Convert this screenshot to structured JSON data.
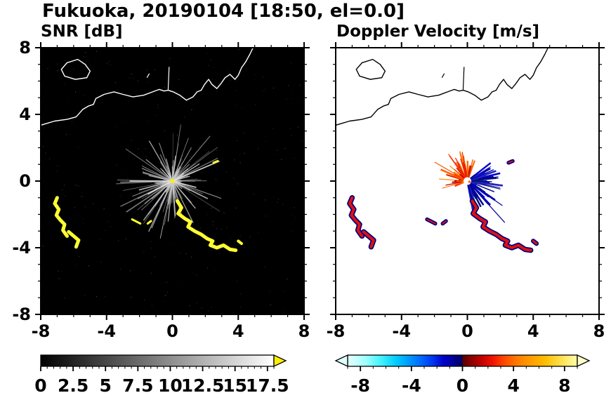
{
  "title": "Fukuoka, 20190104 [18:50, el=0.0]",
  "coastline": {
    "island": [
      [
        -6.4,
        7.1
      ],
      [
        -5.75,
        7.3
      ],
      [
        -5.3,
        7.0
      ],
      [
        -5.0,
        6.6
      ],
      [
        -5.2,
        6.2
      ],
      [
        -5.9,
        6.1
      ],
      [
        -6.55,
        6.3
      ],
      [
        -6.75,
        6.7
      ]
    ],
    "mainland": [
      [
        -8.0,
        3.35
      ],
      [
        -7.15,
        3.6
      ],
      [
        -6.4,
        3.7
      ],
      [
        -5.85,
        3.85
      ],
      [
        -5.45,
        4.3
      ],
      [
        -5.1,
        4.5
      ],
      [
        -4.8,
        4.6
      ],
      [
        -4.65,
        4.95
      ],
      [
        -4.15,
        5.2
      ],
      [
        -3.55,
        5.35
      ],
      [
        -3.0,
        5.2
      ],
      [
        -2.4,
        5.05
      ],
      [
        -1.75,
        5.15
      ],
      [
        -1.2,
        5.35
      ],
      [
        -0.8,
        5.5
      ],
      [
        -0.5,
        5.4
      ],
      [
        -0.25,
        5.45
      ],
      [
        0.05,
        5.35
      ],
      [
        0.45,
        5.15
      ],
      [
        0.85,
        4.85
      ],
      [
        1.25,
        5.05
      ],
      [
        1.5,
        5.35
      ],
      [
        1.75,
        5.45
      ],
      [
        1.95,
        5.8
      ],
      [
        2.2,
        6.1
      ],
      [
        2.4,
        5.8
      ],
      [
        2.7,
        5.55
      ],
      [
        2.95,
        5.85
      ],
      [
        3.2,
        6.2
      ],
      [
        3.5,
        6.4
      ],
      [
        3.8,
        6.1
      ],
      [
        4.0,
        6.35
      ],
      [
        4.2,
        6.8
      ],
      [
        4.45,
        7.15
      ],
      [
        4.7,
        7.6
      ],
      [
        4.9,
        8.0
      ]
    ],
    "breakwater": [
      [
        -0.26,
        5.45
      ],
      [
        -0.2,
        6.85
      ]
    ],
    "islet": [
      [
        -1.55,
        6.2
      ],
      [
        -1.4,
        6.45
      ]
    ]
  },
  "features": [
    {
      "w": 5,
      "pts": [
        [
          -7.0,
          -1.0
        ],
        [
          -7.15,
          -1.35
        ],
        [
          -6.9,
          -1.7
        ],
        [
          -7.05,
          -2.05
        ],
        [
          -6.8,
          -2.35
        ],
        [
          -6.55,
          -2.6
        ],
        [
          -6.65,
          -2.95
        ],
        [
          -6.4,
          -3.3
        ]
      ]
    },
    {
      "w": 5,
      "pts": [
        [
          -6.3,
          -3.05
        ],
        [
          -6.0,
          -3.3
        ],
        [
          -5.7,
          -3.55
        ],
        [
          -5.85,
          -3.95
        ]
      ]
    },
    {
      "w": 3,
      "pts": [
        [
          -2.45,
          -2.3
        ],
        [
          -1.95,
          -2.55
        ]
      ]
    },
    {
      "w": 3,
      "pts": [
        [
          -1.5,
          -2.55
        ],
        [
          -1.3,
          -2.4
        ]
      ]
    },
    {
      "w": 5,
      "pts": [
        [
          0.3,
          -1.2
        ],
        [
          0.55,
          -1.6
        ],
        [
          0.35,
          -1.95
        ],
        [
          0.75,
          -2.25
        ],
        [
          1.1,
          -2.45
        ],
        [
          0.95,
          -2.75
        ],
        [
          1.35,
          -3.0
        ],
        [
          1.75,
          -3.2
        ],
        [
          2.1,
          -3.45
        ],
        [
          2.45,
          -3.6
        ],
        [
          2.3,
          -3.85
        ],
        [
          2.7,
          -4.0
        ],
        [
          3.1,
          -3.85
        ],
        [
          3.5,
          -4.1
        ],
        [
          3.85,
          -4.15
        ]
      ]
    },
    {
      "w": 4,
      "pts": [
        [
          4.0,
          -3.6
        ],
        [
          4.2,
          -3.75
        ]
      ]
    },
    {
      "w": 3,
      "pts": [
        [
          2.5,
          1.1
        ],
        [
          2.75,
          1.2
        ]
      ]
    }
  ],
  "chart_data": [
    {
      "type": "heatmap",
      "name": "snr",
      "title": "SNR [dB]",
      "background": "#000000",
      "coast_color": "#ffffff",
      "xlim": [
        -8,
        8
      ],
      "ylim": [
        -8,
        8
      ],
      "xticks": [
        -8,
        -4,
        0,
        4,
        8
      ],
      "yticks": [
        -8,
        -4,
        0,
        4,
        8
      ],
      "minor_tick_step": 1,
      "show_ylabels": true,
      "grid": false,
      "center_dot_color": "#ffee00",
      "streaks": {
        "seed": 7,
        "count": 150,
        "angle_deg": [
          0,
          360
        ],
        "length_units": [
          0.5,
          3.6
        ],
        "color": "#cccccc"
      },
      "speckle": {
        "seed": 11,
        "count": 260,
        "color": "#888888"
      },
      "highlight_rays": [
        {
          "angle_deg": 180,
          "length": 2.6
        },
        {
          "angle_deg": 23,
          "length": 3.1
        },
        {
          "angle_deg": 208,
          "length": 1.7
        },
        {
          "angle_deg": 345,
          "length": 1.5
        }
      ],
      "features_color": "#ffff33",
      "colorbar": {
        "range": [
          0,
          18
        ],
        "tick_values": [
          0,
          2.5,
          5,
          7.5,
          10,
          12.5,
          15,
          17.5
        ],
        "tick_labels": [
          "0",
          "2.5",
          "5",
          "7.5",
          "10",
          "12.5",
          "15",
          "17.5"
        ],
        "minor_step": 0.5,
        "stops": [
          {
            "v": 0,
            "c": "#000000"
          },
          {
            "v": 18,
            "c": "#ffffff"
          }
        ],
        "arrow_left": null,
        "arrow_right": "#ffee00"
      }
    },
    {
      "type": "heatmap",
      "name": "doppler",
      "title": "Doppler Velocity [m/s]",
      "background": "#ffffff",
      "coast_color": "#000000",
      "xlim": [
        -8,
        8
      ],
      "ylim": [
        -8,
        8
      ],
      "xticks": [
        -8,
        -4,
        0,
        4,
        8
      ],
      "yticks": [
        -8,
        -4,
        0,
        4,
        8
      ],
      "minor_tick_step": 1,
      "show_ylabels": false,
      "grid": false,
      "center_marker": {
        "circle_color": "#ffffff",
        "ring_color": "#ff6600"
      },
      "fans": [
        {
          "seed": 5,
          "count": 90,
          "angle_deg": [
            70,
            205
          ],
          "length_units": [
            0.25,
            1.9
          ],
          "colors": [
            "#ff3300",
            "#ee2200",
            "#ff6600",
            "#ff8800",
            "#cc1100"
          ]
        },
        {
          "seed": 9,
          "count": 80,
          "angle_deg": [
            -80,
            40
          ],
          "length_units": [
            0.25,
            2.2
          ],
          "colors": [
            "#000099",
            "#0000cc",
            "#001177",
            "#2222bb"
          ]
        }
      ],
      "long_rays": [
        {
          "angle_deg": -48,
          "length": 3.4,
          "color": "#000099"
        },
        {
          "angle_deg": -35,
          "length": 2.6,
          "color": "#0000bb"
        },
        {
          "angle_deg": 150,
          "length": 2.3,
          "color": "#ff5500"
        },
        {
          "angle_deg": 125,
          "length": 2.0,
          "color": "#ff3300"
        },
        {
          "angle_deg": 100,
          "length": 1.8,
          "color": "#ee2200"
        }
      ],
      "features_outline_color": "#000080",
      "features_color": "#dd1111",
      "colorbar": {
        "range": [
          -9,
          9
        ],
        "tick_values": [
          -8,
          -4,
          0,
          4,
          8
        ],
        "tick_labels": [
          "-8",
          "-4",
          "0",
          "4",
          "8"
        ],
        "minor_step": 1,
        "stops": [
          {
            "v": -9,
            "c": "#e8ffff"
          },
          {
            "v": -7.6,
            "c": "#a0ffff"
          },
          {
            "v": -6.4,
            "c": "#44f2ff"
          },
          {
            "v": -5.2,
            "c": "#00ccff"
          },
          {
            "v": -4.2,
            "c": "#0099ff"
          },
          {
            "v": -3.2,
            "c": "#0066ff"
          },
          {
            "v": -2.3,
            "c": "#0033ee"
          },
          {
            "v": -1.5,
            "c": "#0000cc"
          },
          {
            "v": -0.7,
            "c": "#000099"
          },
          {
            "v": -0.05,
            "c": "#000060"
          },
          {
            "v": 0.05,
            "c": "#5a0000"
          },
          {
            "v": 0.7,
            "c": "#8e0000"
          },
          {
            "v": 1.5,
            "c": "#c00000"
          },
          {
            "v": 2.3,
            "c": "#ee1000"
          },
          {
            "v": 3.2,
            "c": "#ff4400"
          },
          {
            "v": 4.2,
            "c": "#ff7700"
          },
          {
            "v": 5.2,
            "c": "#ff9900"
          },
          {
            "v": 6.4,
            "c": "#ffbb00"
          },
          {
            "v": 7.6,
            "c": "#ffdd44"
          },
          {
            "v": 9,
            "c": "#ffffaa"
          }
        ],
        "arrow_left": "#ddffff",
        "arrow_right": "#ffffcc"
      }
    }
  ]
}
